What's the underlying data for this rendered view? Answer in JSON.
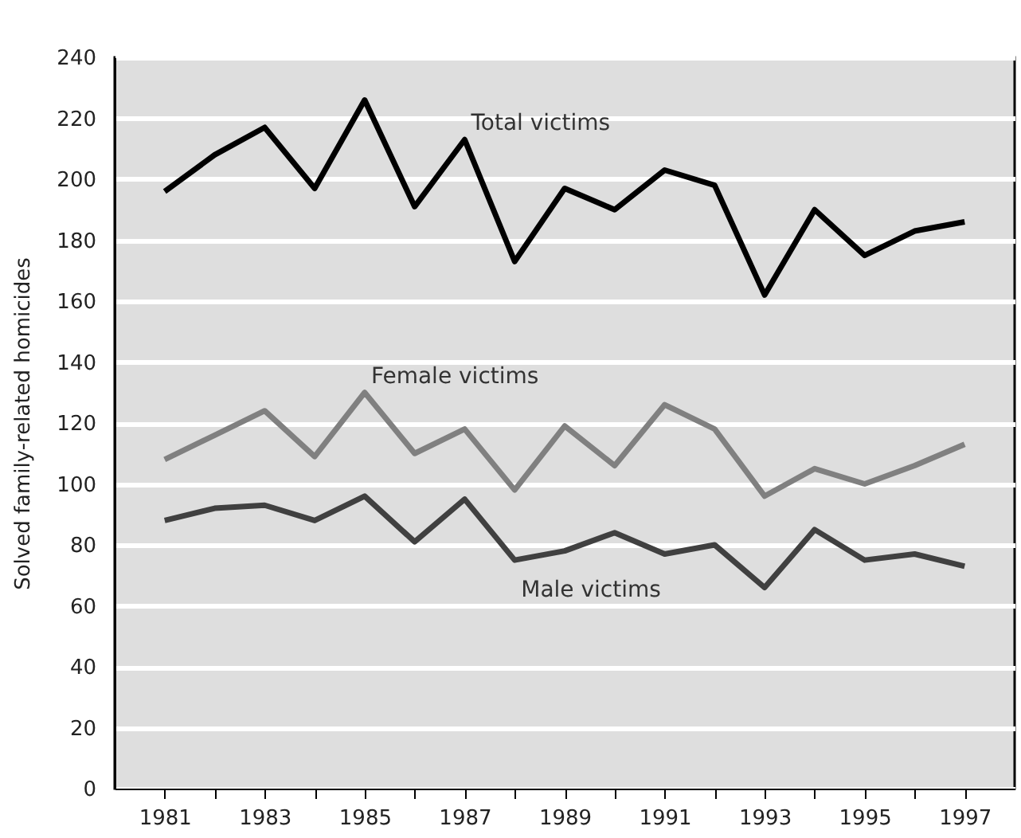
{
  "chart_data": {
    "type": "line",
    "ylabel": "Solved family-related homicides",
    "x": [
      1981,
      1982,
      1983,
      1984,
      1985,
      1986,
      1987,
      1988,
      1989,
      1990,
      1991,
      1992,
      1993,
      1994,
      1995,
      1996,
      1997
    ],
    "series": [
      {
        "color": "#000000",
        "values": [
          196,
          208,
          217,
          197,
          226,
          191,
          213,
          173,
          197,
          190,
          203,
          198,
          162,
          190,
          175,
          183,
          186
        ]
      },
      {
        "color": "#808080",
        "values": [
          108,
          116,
          124,
          109,
          130,
          110,
          118,
          98,
          119,
          106,
          126,
          118,
          96,
          105,
          100,
          106,
          113
        ]
      },
      {
        "color": "#404040",
        "values": [
          88,
          92,
          93,
          88,
          96,
          81,
          95,
          75,
          78,
          84,
          77,
          80,
          66,
          85,
          75,
          77,
          73
        ]
      }
    ],
    "annotations": [
      {
        "text": "Total victims",
        "x": 1987,
        "y": 213
      },
      {
        "text": "Female victims",
        "x": 1985,
        "y": 130
      },
      {
        "text": "Male victims",
        "x": 1988,
        "y": 75
      }
    ],
    "xlim": [
      1980,
      1998
    ],
    "xticks": [
      1981,
      {
        "value": 1982,
        "label": null
      },
      1983,
      {
        "value": 1984,
        "label": null
      },
      1985,
      {
        "value": 1986,
        "label": null
      },
      1987,
      {
        "value": 1988,
        "label": null
      },
      1989,
      {
        "value": 1990,
        "label": null
      },
      1991,
      {
        "value": 1992,
        "label": null
      },
      1993,
      {
        "value": 1994,
        "label": null
      },
      1995,
      {
        "value": 1996,
        "label": null
      },
      1997
    ],
    "ylim": [
      0,
      240
    ],
    "yticks": [
      0,
      20,
      40,
      60,
      80,
      100,
      120,
      140,
      160,
      180,
      200,
      220,
      240
    ],
    "grid": "y",
    "legend": false,
    "line_style": "solid",
    "marker": "none"
  }
}
